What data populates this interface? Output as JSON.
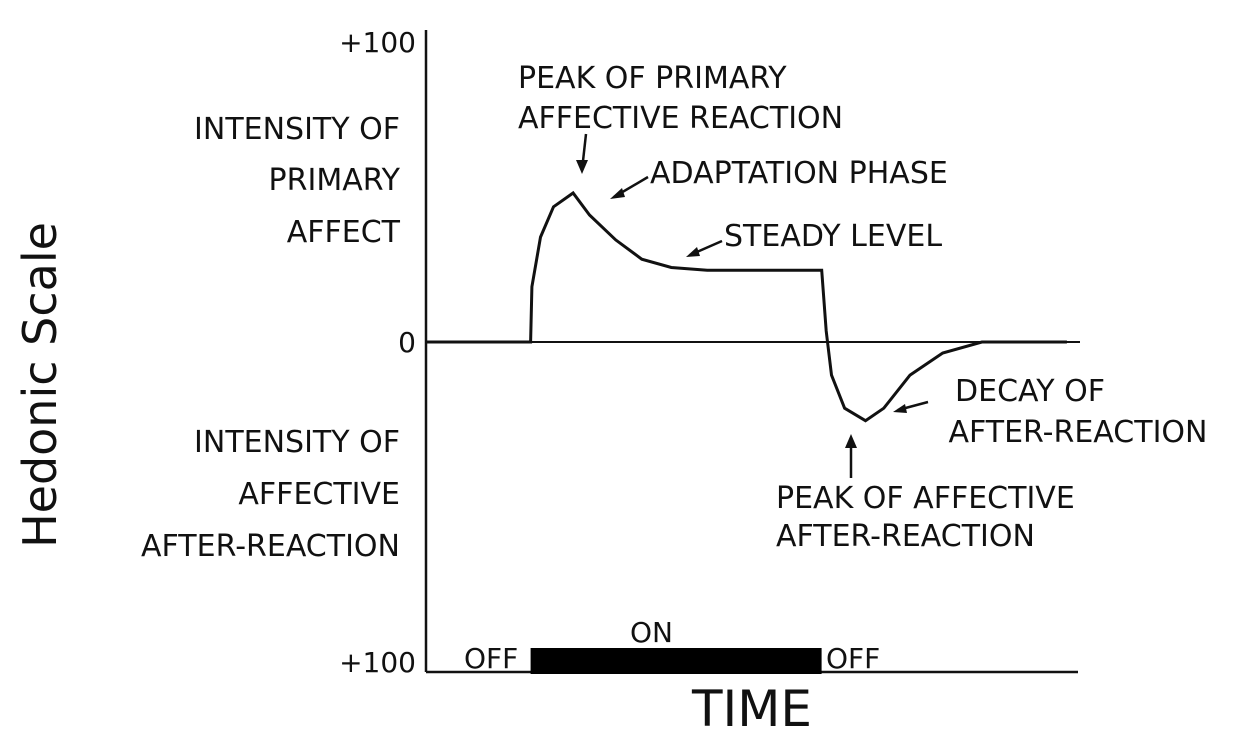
{
  "chart_data": {
    "type": "line",
    "ylabel": "Hedonic Scale",
    "xlabel": "TIME",
    "y_ticks": [
      "+100",
      "0",
      "+100"
    ],
    "region_labels": {
      "primary": [
        "INTENSITY OF",
        "PRIMARY",
        "AFFECT"
      ],
      "after": [
        "INTENSITY OF",
        "AFFECTIVE",
        "AFTER-REACTION"
      ]
    },
    "annotations": {
      "peak_primary": [
        "PEAK OF PRIMARY",
        "AFFECTIVE REACTION"
      ],
      "adaptation": "ADAPTATION PHASE",
      "steady": "STEADY LEVEL",
      "decay": [
        "DECAY OF",
        "AFTER-REACTION"
      ],
      "peak_after": [
        "PEAK OF AFFECTIVE",
        "AFTER-REACTION"
      ]
    },
    "stimulus": {
      "off_before": "OFF",
      "on": "ON",
      "off_after": "OFF"
    },
    "ylim": [
      -100,
      100
    ],
    "series": [
      {
        "points": [
          [
            0,
            0
          ],
          [
            1.6,
            0
          ],
          [
            1.62,
            20
          ],
          [
            1.75,
            38
          ],
          [
            1.95,
            49
          ],
          [
            2.25,
            54
          ],
          [
            2.5,
            46
          ],
          [
            2.9,
            37
          ],
          [
            3.3,
            30
          ],
          [
            3.75,
            27
          ],
          [
            4.3,
            26
          ],
          [
            6.05,
            26
          ],
          [
            6.12,
            4
          ],
          [
            6.2,
            -12
          ],
          [
            6.4,
            -24
          ],
          [
            6.72,
            -28.5
          ],
          [
            7.0,
            -24
          ],
          [
            7.4,
            -12
          ],
          [
            7.9,
            -4
          ],
          [
            8.5,
            0
          ],
          [
            9.8,
            0
          ]
        ]
      }
    ],
    "stimulus_on": [
      1.6,
      6.05
    ],
    "xlim": [
      0,
      10
    ]
  }
}
